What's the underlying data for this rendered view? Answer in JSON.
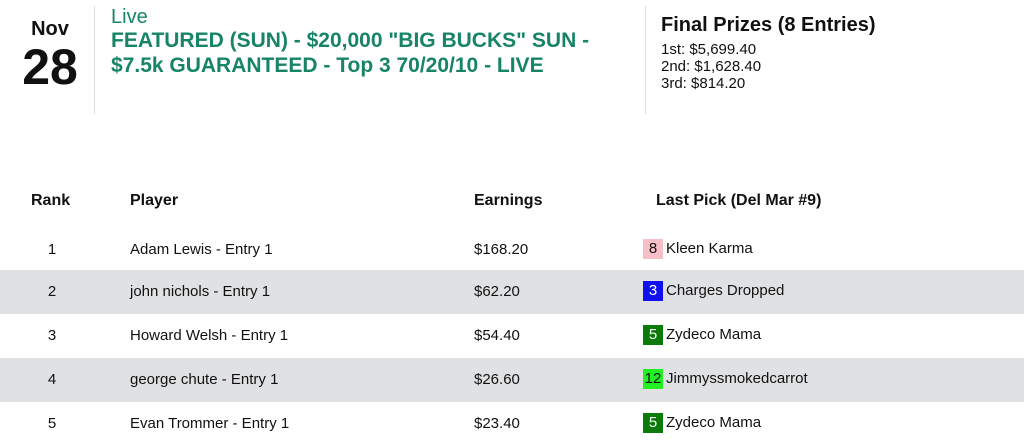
{
  "date": {
    "month": "Nov",
    "day": "28"
  },
  "tournament": {
    "status": "Live",
    "name": "FEATURED (SUN) - $20,000 \"BIG BUCKS\" SUN - $7.5k GUARANTEED - Top 3 70/20/10 - LIVE"
  },
  "prizes": {
    "title": "Final Prizes (8 Entries)",
    "lines": [
      "1st: $5,699.40",
      "2nd: $1,628.40",
      "3rd: $814.20"
    ]
  },
  "table": {
    "headers": {
      "rank": "Rank",
      "player": "Player",
      "earnings": "Earnings",
      "last_pick": "Last Pick (Del Mar #9)"
    },
    "rows": [
      {
        "rank": "1",
        "player": "Adam Lewis - Entry 1",
        "earnings": "$168.20",
        "pick_num": "8",
        "pick_name": "Kleen Karma",
        "badge_bg": "#f7c0c8",
        "badge_fg": "#111111"
      },
      {
        "rank": "2",
        "player": "john nichols - Entry 1",
        "earnings": "$62.20",
        "pick_num": "3",
        "pick_name": "Charges Dropped",
        "badge_bg": "#1010f0",
        "badge_fg": "#ffffff"
      },
      {
        "rank": "3",
        "player": "Howard Welsh - Entry 1",
        "earnings": "$54.40",
        "pick_num": "5",
        "pick_name": "Zydeco Mama",
        "badge_bg": "#0a7a0a",
        "badge_fg": "#ffffff"
      },
      {
        "rank": "4",
        "player": "george chute - Entry 1",
        "earnings": "$26.60",
        "pick_num": "12",
        "pick_name": "Jimmyssmokedcarrot",
        "badge_bg": "#22f022",
        "badge_fg": "#111111"
      },
      {
        "rank": "5",
        "player": "Evan Trommer - Entry 1",
        "earnings": "$23.40",
        "pick_num": "5",
        "pick_name": "Zydeco Mama",
        "badge_bg": "#0a7a0a",
        "badge_fg": "#ffffff"
      }
    ]
  }
}
